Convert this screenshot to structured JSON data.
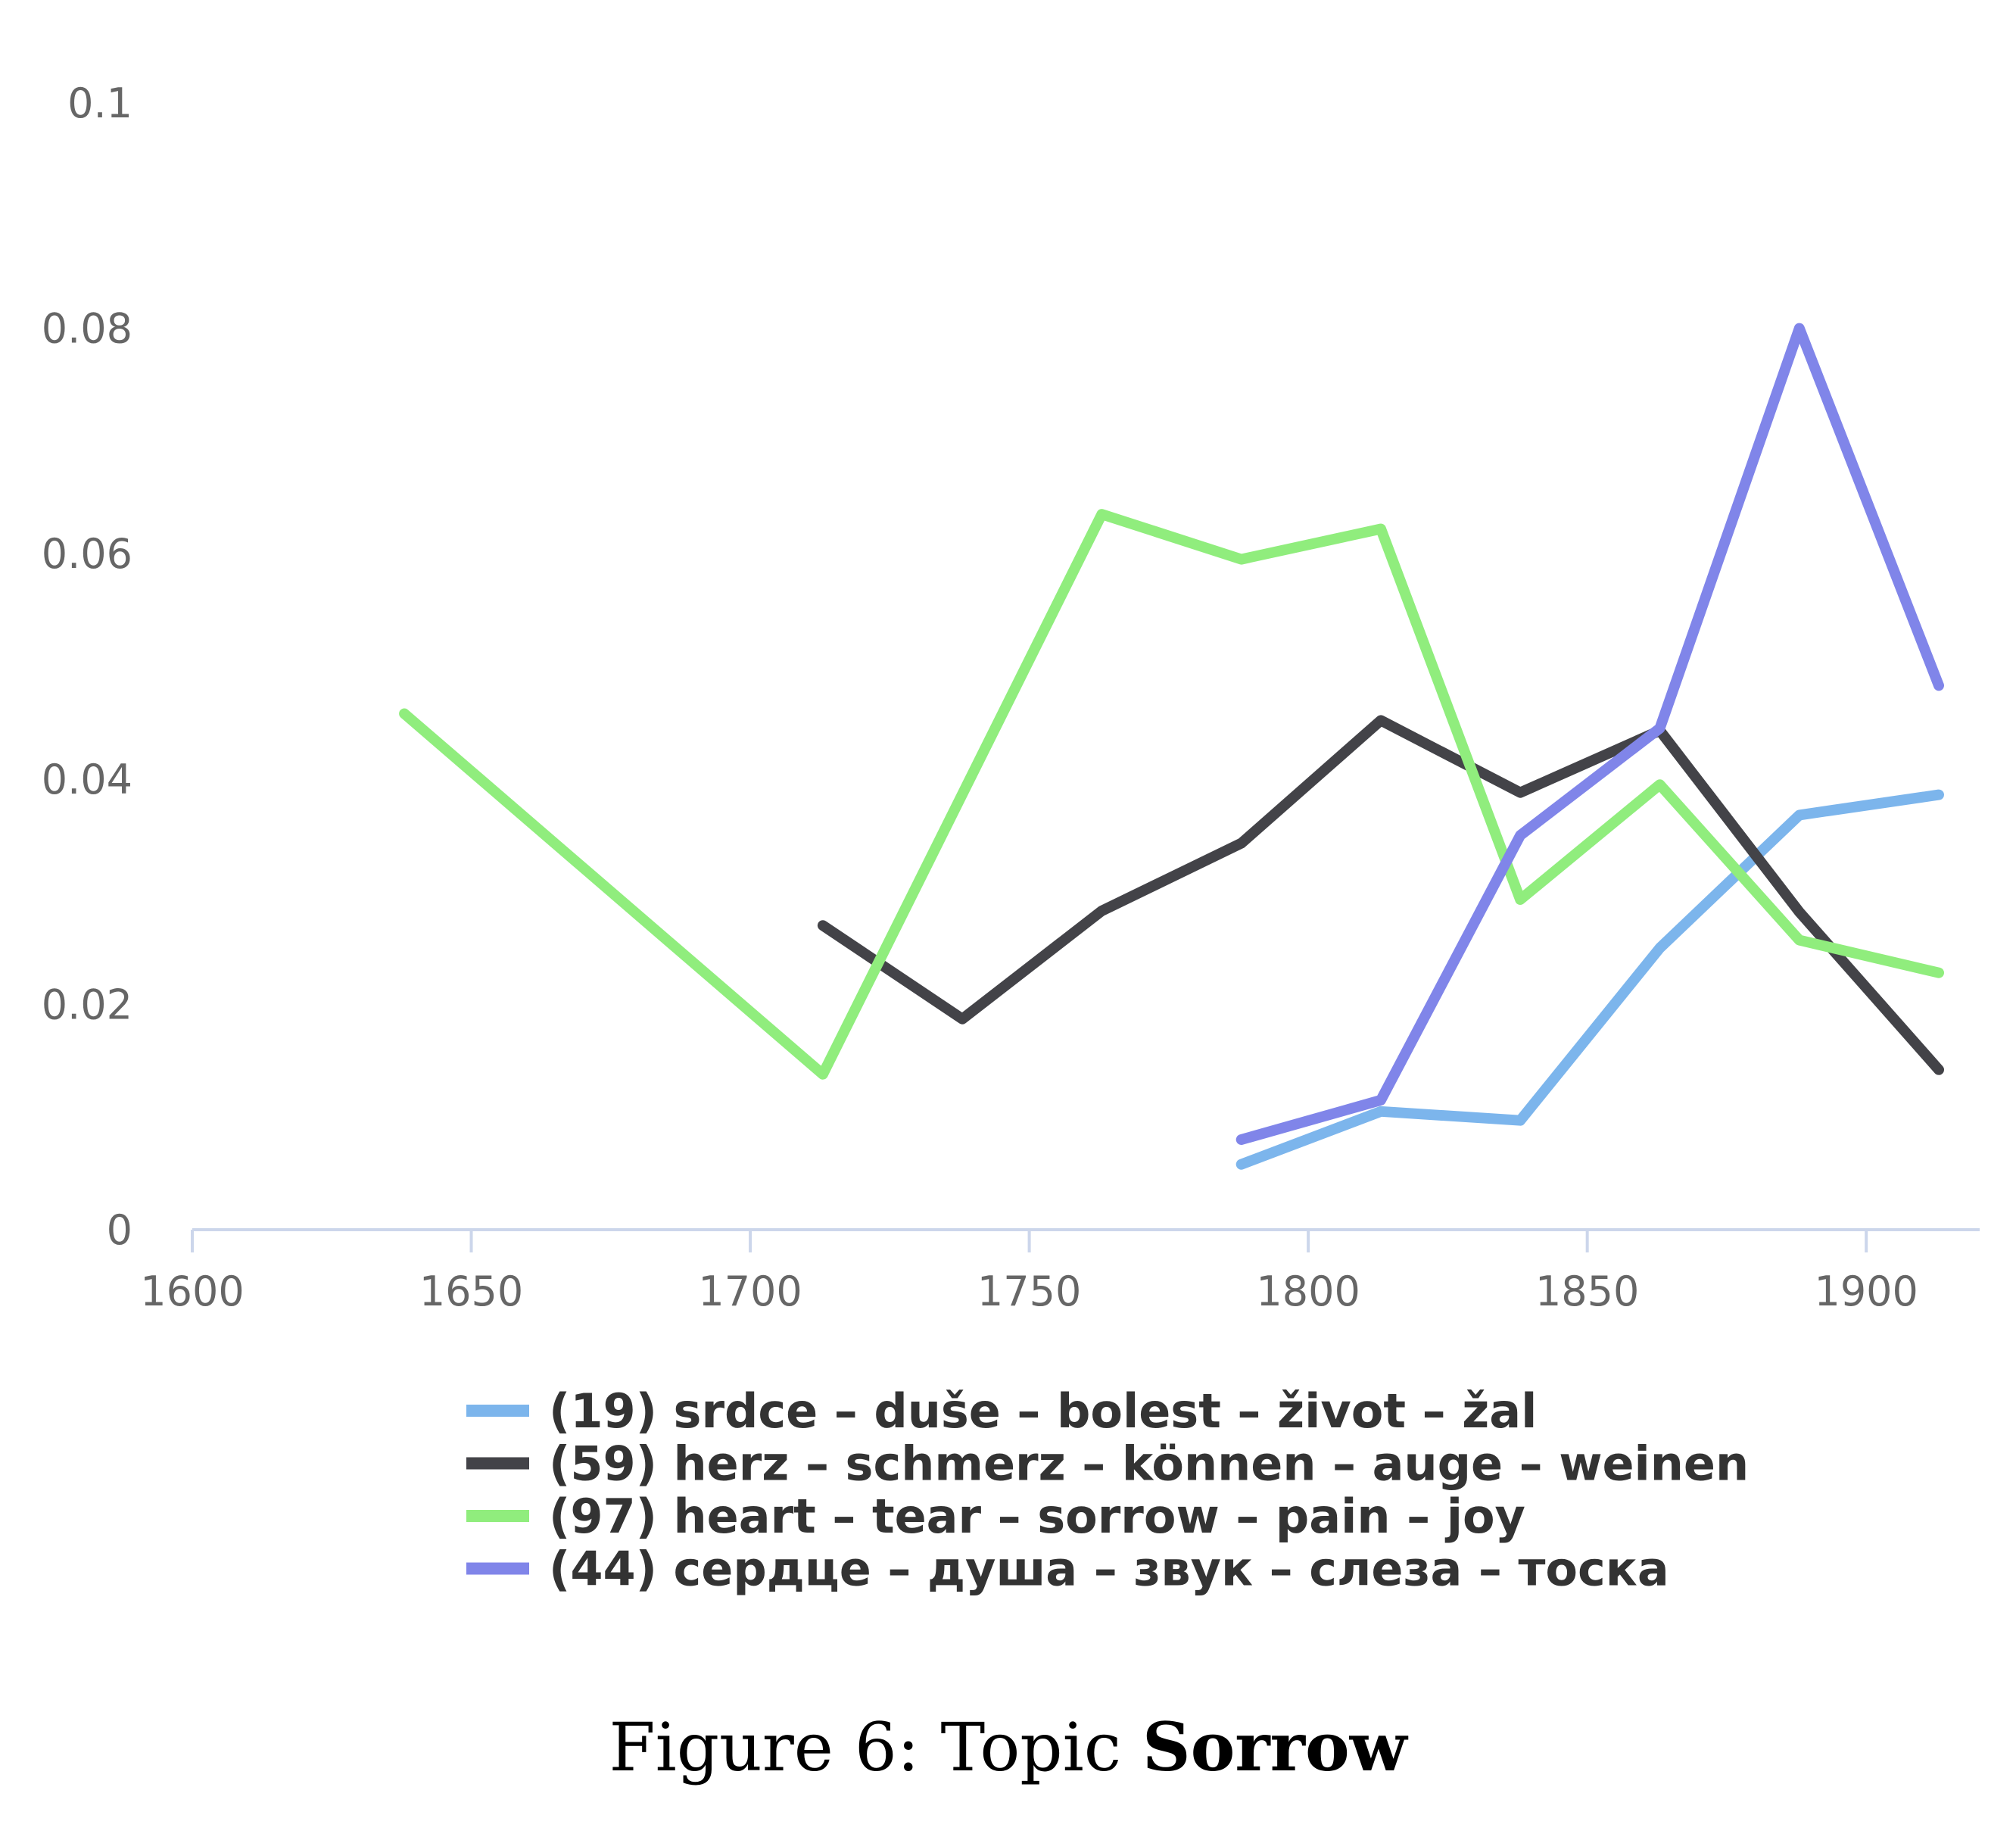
{
  "caption": {
    "prefix": "Figure 6: Topic",
    "bold": "Sorrow"
  },
  "chart_data": {
    "type": "line",
    "title": "",
    "xlabel": "",
    "ylabel": "",
    "xlim": [
      1600,
      1920
    ],
    "ylim": [
      0,
      0.1
    ],
    "x_ticks": [
      "1600",
      "1650",
      "1700",
      "1750",
      "1800",
      "1850",
      "1900"
    ],
    "y_ticks": [
      "0",
      "0.02",
      "0.04",
      "0.06",
      "0.08",
      "0.1"
    ],
    "grid": false,
    "legend_position": "bottom",
    "series": [
      {
        "name": "(19) srdce – duše – bolest – život – žal",
        "color": "#7cb5ec",
        "points": [
          [
            1788,
            0.0058
          ],
          [
            1813,
            0.0105
          ],
          [
            1838,
            0.0097
          ],
          [
            1863,
            0.025
          ],
          [
            1888,
            0.0368
          ],
          [
            1913,
            0.0386
          ]
        ]
      },
      {
        "name": "(59) herz – schmerz – können – auge – weinen",
        "color": "#434348",
        "points": [
          [
            1713,
            0.027
          ],
          [
            1738,
            0.0187
          ],
          [
            1763,
            0.0283
          ],
          [
            1788,
            0.0343
          ],
          [
            1813,
            0.0452
          ],
          [
            1838,
            0.0388
          ],
          [
            1863,
            0.0443
          ],
          [
            1888,
            0.0282
          ],
          [
            1913,
            0.0142
          ]
        ]
      },
      {
        "name": "(97) heart – tear – sorrow – pain – joy",
        "color": "#90ed7d",
        "points": [
          [
            1638,
            0.0458
          ],
          [
            1713,
            0.0138
          ],
          [
            1763,
            0.0635
          ],
          [
            1788,
            0.0595
          ],
          [
            1813,
            0.0622
          ],
          [
            1838,
            0.0293
          ],
          [
            1863,
            0.0395
          ],
          [
            1888,
            0.0257
          ],
          [
            1913,
            0.0228
          ]
        ]
      },
      {
        "name": "(44) сердце – душа – звук – слеза – тоска",
        "color": "#8085e9",
        "points": [
          [
            1788,
            0.008
          ],
          [
            1813,
            0.0115
          ],
          [
            1838,
            0.035
          ],
          [
            1863,
            0.0445
          ],
          [
            1888,
            0.08
          ],
          [
            1913,
            0.0483
          ]
        ]
      }
    ]
  }
}
